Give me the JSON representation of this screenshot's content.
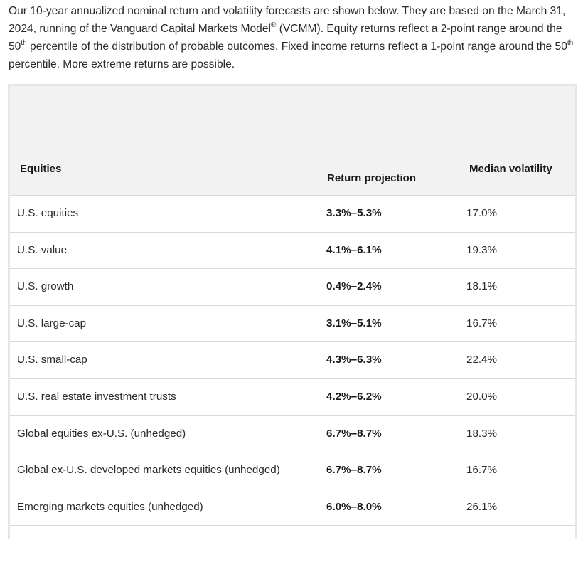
{
  "intro": {
    "part1": "Our 10-year annualized nominal return and volatility forecasts are shown below. They are based on the March 31, 2024, running of the Vanguard Capital Markets Model",
    "reg": "®",
    "part2": " (VCMM). Equity returns reflect a 2-point range around the 50",
    "sup1": "th",
    "part3": " percentile of the distribution of probable outcomes. Fixed income returns reflect a 1-point range around the 50",
    "sup2": "th",
    "part4": " percentile. More extreme returns are possible."
  },
  "table": {
    "headers": {
      "equities": "Equities",
      "return_projection": "Return projection",
      "median_volatility": "Median volatility"
    },
    "rows": [
      {
        "name": "U.S. equities",
        "return": "3.3%–5.3%",
        "volatility": "17.0%"
      },
      {
        "name": "U.S. value",
        "return": "4.1%–6.1%",
        "volatility": "19.3%"
      },
      {
        "name": "U.S. growth",
        "return": "0.4%–2.4%",
        "volatility": "18.1%"
      },
      {
        "name": "U.S. large-cap",
        "return": "3.1%–5.1%",
        "volatility": "16.7%"
      },
      {
        "name": "U.S. small-cap",
        "return": "4.3%–6.3%",
        "volatility": "22.4%"
      },
      {
        "name": "U.S. real estate investment trusts",
        "return": "4.2%–6.2%",
        "volatility": "20.0%"
      },
      {
        "name": "Global equities ex-U.S. (unhedged)",
        "return": "6.7%–8.7%",
        "volatility": "18.3%"
      },
      {
        "name": "Global ex-U.S. developed markets equities (unhedged)",
        "return": "6.7%–8.7%",
        "volatility": "16.7%"
      },
      {
        "name": "Emerging markets equities (unhedged)",
        "return": "6.0%–8.0%",
        "volatility": "26.1%"
      }
    ]
  }
}
